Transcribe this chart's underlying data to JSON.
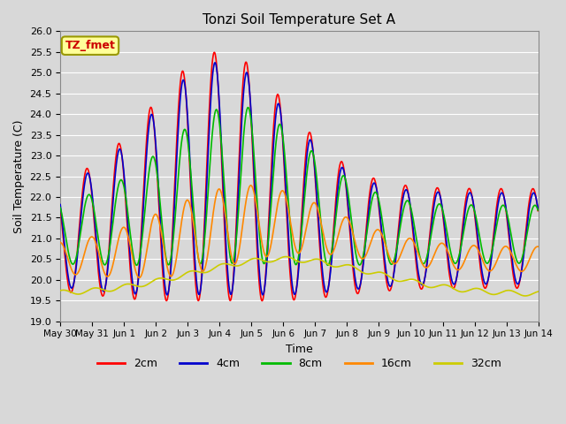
{
  "title": "Tonzi Soil Temperature Set A",
  "xlabel": "Time",
  "ylabel": "Soil Temperature (C)",
  "ylim": [
    19.0,
    26.0
  ],
  "yticks": [
    19.0,
    19.5,
    20.0,
    20.5,
    21.0,
    21.5,
    22.0,
    22.5,
    23.0,
    23.5,
    24.0,
    24.5,
    25.0,
    25.5,
    26.0
  ],
  "colors": {
    "2cm": "#FF0000",
    "4cm": "#0000CC",
    "8cm": "#00BB00",
    "16cm": "#FF8800",
    "32cm": "#CCCC00"
  },
  "linewidth": 1.2,
  "background_color": "#D8D8D8",
  "plot_bg": "#D8D8D8",
  "grid_color": "#FFFFFF",
  "annotation_text": "TZ_fmet",
  "annotation_bg": "#FFFF99",
  "annotation_edge": "#999900",
  "annotation_text_color": "#CC0000",
  "x_tick_labels": [
    "May 30",
    "May 31",
    "Jun 1",
    "Jun 2",
    "Jun 3",
    "Jun 4",
    "Jun 5",
    "Jun 6",
    "Jun 7",
    "Jun 8",
    "Jun 9",
    "Jun 10",
    "Jun 11",
    "Jun 12",
    "Jun 13",
    "Jun 14"
  ]
}
